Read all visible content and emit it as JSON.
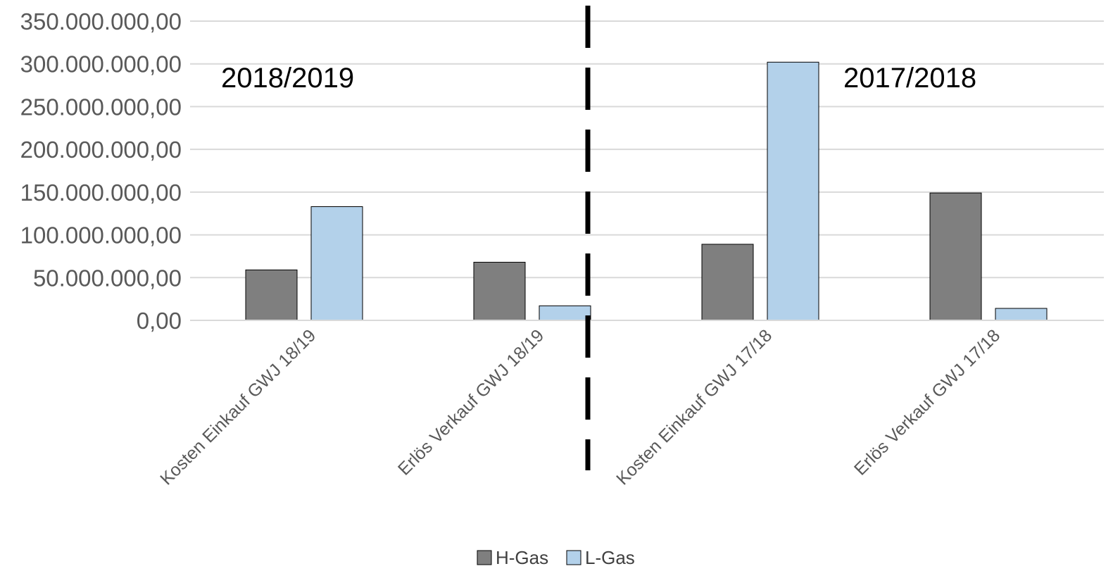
{
  "chart_data": {
    "type": "bar",
    "title": "",
    "xlabel": "",
    "ylabel": "",
    "categories": [
      "Kosten Einkauf GWJ 18/19",
      "Erlös Verkauf GWJ 18/19",
      "Kosten Einkauf GWJ 17/18",
      "Erlös Verkauf GWJ 17/18"
    ],
    "series": [
      {
        "name": "H-Gas",
        "color": "#7f7f7f",
        "values": [
          59000000,
          68000000,
          89000000,
          149000000
        ]
      },
      {
        "name": "L-Gas",
        "color": "#b3d1ea",
        "values": [
          133000000,
          17000000,
          302000000,
          14000000
        ]
      }
    ],
    "ylim": [
      0,
      350000000
    ],
    "yticks": [
      {
        "value": 0,
        "label": "0,00"
      },
      {
        "value": 50000000,
        "label": "50.000.000,00"
      },
      {
        "value": 100000000,
        "label": "100.000.000,00"
      },
      {
        "value": 150000000,
        "label": "150.000.000,00"
      },
      {
        "value": 200000000,
        "label": "200.000.000,00"
      },
      {
        "value": 250000000,
        "label": "250.000.000,00"
      },
      {
        "value": 300000000,
        "label": "300.000.000,00"
      },
      {
        "value": 350000000,
        "label": "350.000.000,00"
      }
    ],
    "grid": true,
    "legend_position": "bottom",
    "annotations": [
      "2018/2019",
      "2017/2018"
    ],
    "divider": "dashed vertical line between period groups"
  }
}
